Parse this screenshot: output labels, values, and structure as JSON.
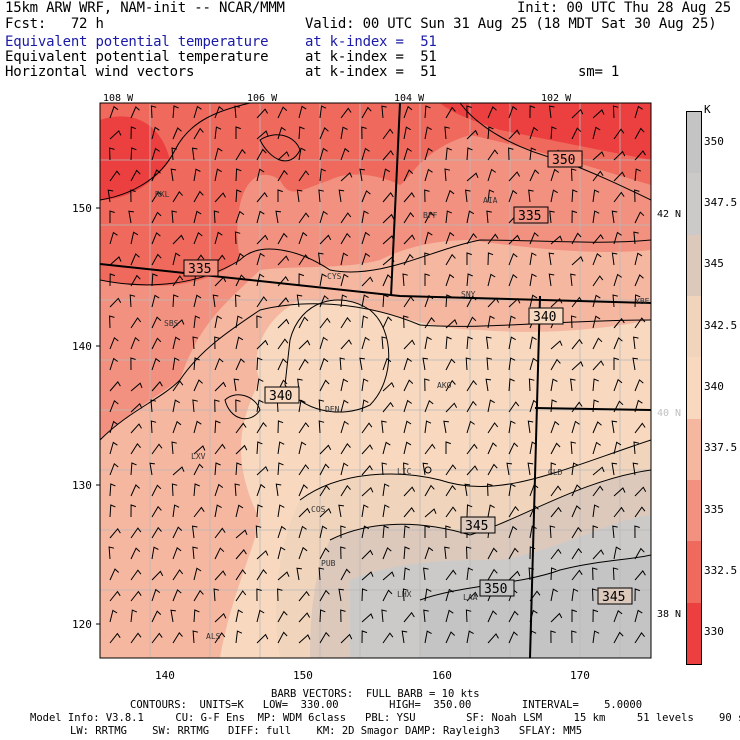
{
  "header": {
    "model_title": "15km ARW WRF, NAM-init -- NCAR/MMM",
    "init_time": "Init: 00 UTC Thu 28 Aug 25",
    "forecast_hour": "Fcst:   72 h",
    "valid_time": "Valid: 00 UTC Sun 31 Aug 25 (18 MDT Sat 30 Aug 25)",
    "fields": [
      {
        "name": "Equivalent potential temperature",
        "level": "at k-index =  51",
        "color": "#1a1aa8"
      },
      {
        "name": "Equivalent potential temperature",
        "level": "at k-index =  51",
        "color": "#000000"
      },
      {
        "name": "Horizontal wind vectors",
        "level": "at k-index =  51",
        "color": "#000000"
      }
    ],
    "smoothing": "sm= 1"
  },
  "map": {
    "top_longitudes": [
      "108 W",
      "106 W",
      "104 W",
      "102 W"
    ],
    "right_latitudes": [
      {
        "label": "42 N",
        "color": "#000000"
      },
      {
        "label": "40 N",
        "color": "#c0c0c0"
      },
      {
        "label": "38 N",
        "color": "#000000"
      }
    ],
    "left_grid_ticks": [
      "150",
      "140",
      "130",
      "120"
    ],
    "bottom_grid_ticks": [
      "140",
      "150",
      "160",
      "170"
    ],
    "stations": [
      "RKL",
      "BFF",
      "AIA",
      "CYS",
      "SNY",
      "SBS",
      "DEN",
      "AKO",
      "LXV",
      "LIC",
      "GLD",
      "COS",
      "PUB",
      "LHX",
      "LAA",
      "ALS",
      "YBE"
    ],
    "contour_labels": [
      "350",
      "335",
      "335",
      "340",
      "340",
      "345",
      "350",
      "345"
    ]
  },
  "colorbar": {
    "unit": "K",
    "labels": [
      "350",
      "347.5",
      "345",
      "342.5",
      "340",
      "337.5",
      "335",
      "332.5",
      "330"
    ],
    "colors": [
      "#c4c4c4",
      "#cccac8",
      "#dcc9bc",
      "#f0d4bb",
      "#f8d9c0",
      "#f6b7a1",
      "#f29180",
      "#ef6a5d",
      "#ec4040"
    ]
  },
  "footer": {
    "barb_vectors": "BARB VECTORS:  FULL BARB = 10 kts",
    "contours": "CONTOURS:  UNITS=K   LOW=  330.00        HIGH=  350.00        INTERVAL=    5.0000",
    "model_info": "Model Info: V3.8.1     CU: G-F Ens  MP: WDM 6class   PBL: YSU        SF: Noah LSM     15 km     51 levels    90 sec",
    "physics": "LW: RRTMG    SW: RRTMG   DIFF: full    KM: 2D Smagor DAMP: Rayleigh3   SFLAY: MM5"
  }
}
